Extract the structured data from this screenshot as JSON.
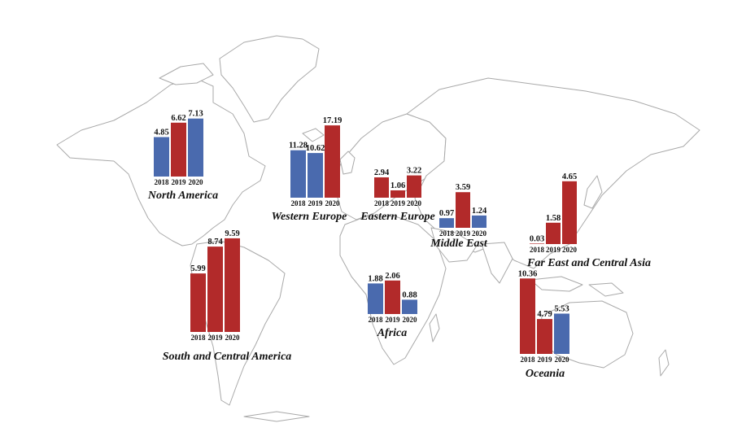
{
  "colors": {
    "red": "#b22a2a",
    "blue": "#4a6aae",
    "land_outline": "#a9a9a9"
  },
  "chart_data": [
    {
      "type": "bar",
      "title": "North America",
      "categories": [
        "2018",
        "2019",
        "2020"
      ],
      "values": [
        4.85,
        6.62,
        7.13
      ],
      "labels": [
        "4.85",
        "6.62",
        "7.13"
      ],
      "colors": [
        "blue",
        "red",
        "blue"
      ]
    },
    {
      "type": "bar",
      "title": "Western Europe",
      "categories": [
        "2018",
        "2019",
        "2020"
      ],
      "values": [
        11.28,
        10.62,
        17.19
      ],
      "labels": [
        "11.28",
        "10.62",
        "17.19"
      ],
      "colors": [
        "blue",
        "blue",
        "red"
      ]
    },
    {
      "type": "bar",
      "title": "Eastern Europe",
      "categories": [
        "2018",
        "2019",
        "2020"
      ],
      "values": [
        2.94,
        1.06,
        3.22
      ],
      "labels": [
        "2.94",
        "1.06",
        "3.22"
      ],
      "colors": [
        "red",
        "red",
        "red"
      ]
    },
    {
      "type": "bar",
      "title": "Middle East",
      "categories": [
        "2018",
        "2019",
        "2020"
      ],
      "values": [
        0.97,
        3.59,
        1.24
      ],
      "labels": [
        "0.97",
        "3.59",
        "1.24"
      ],
      "colors": [
        "blue",
        "red",
        "blue"
      ]
    },
    {
      "type": "bar",
      "title": "Far East and Central Asia",
      "categories": [
        "2018",
        "2019",
        "2020"
      ],
      "values": [
        0.03,
        1.58,
        4.65
      ],
      "labels": [
        "0.03",
        "1.58",
        "4.65"
      ],
      "colors": [
        "red",
        "red",
        "red"
      ]
    },
    {
      "type": "bar",
      "title": "South and Central America",
      "categories": [
        "2018",
        "2019",
        "2020"
      ],
      "values": [
        5.99,
        8.74,
        9.59
      ],
      "labels": [
        "5.99",
        "8.74",
        "9.59"
      ],
      "colors": [
        "red",
        "red",
        "red"
      ]
    },
    {
      "type": "bar",
      "title": "Africa",
      "categories": [
        "2018",
        "2019",
        "2020"
      ],
      "values": [
        1.88,
        2.06,
        0.88
      ],
      "labels": [
        "1.88",
        "2.06",
        "0.88"
      ],
      "colors": [
        "blue",
        "red",
        "blue"
      ]
    },
    {
      "type": "bar",
      "title": "Oceania",
      "categories": [
        "2018",
        "2019",
        "2020"
      ],
      "values": [
        10.36,
        4.79,
        5.53
      ],
      "labels": [
        "10.36",
        "4.79",
        "5.53"
      ],
      "colors": [
        "red",
        "red",
        "blue"
      ]
    }
  ]
}
